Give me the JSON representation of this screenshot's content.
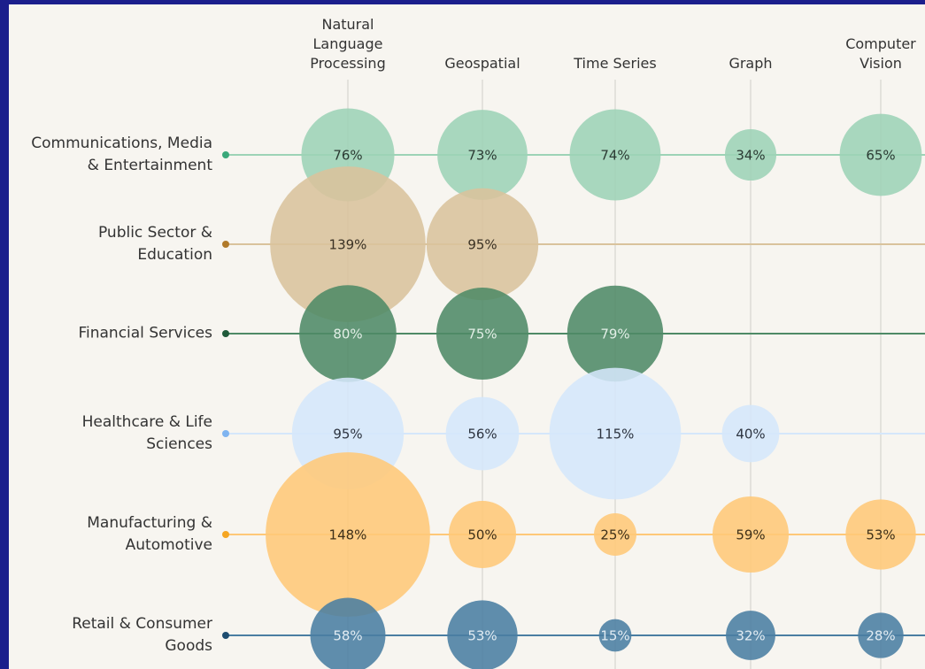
{
  "chart_data": {
    "type": "bubble",
    "columns": [
      "Natural Language Processing",
      "Geospatial",
      "Time Series",
      "Graph",
      "Computer Vision"
    ],
    "series": [
      {
        "name": "Communications, Media & Entertainment",
        "color": "#9dd3b6",
        "accent": "#3aa87a",
        "label_color": "#2b3a33",
        "values": [
          76,
          73,
          74,
          34,
          65
        ],
        "value_labels": [
          "76%",
          "73%",
          "74%",
          "34%",
          "65%"
        ]
      },
      {
        "name": "Public Sector & Education",
        "color": "#d9c39c",
        "accent": "#b07a2a",
        "label_color": "#3a3124",
        "values": [
          139,
          95,
          null,
          null,
          null
        ],
        "value_labels": [
          "139%",
          "95%",
          null,
          null,
          null
        ]
      },
      {
        "name": "Financial Services",
        "color": "#4e8a66",
        "accent": "#1f5a3a",
        "label_color": "#e3efe7",
        "values": [
          80,
          75,
          79,
          null,
          null
        ],
        "value_labels": [
          "80%",
          "75%",
          "79%",
          null,
          null
        ]
      },
      {
        "name": "Healthcare & Life Sciences",
        "color": "#d5e7fb",
        "accent": "#7fb4f0",
        "label_color": "#2d3440",
        "values": [
          95,
          56,
          115,
          40,
          null
        ],
        "value_labels": [
          "95%",
          "56%",
          "115%",
          "40%",
          null
        ]
      },
      {
        "name": "Manufacturing & Automotive",
        "color": "#ffc878",
        "accent": "#f5a623",
        "label_color": "#3d2f18",
        "values": [
          148,
          50,
          25,
          59,
          53
        ],
        "value_labels": [
          "148%",
          "50%",
          "25%",
          "59%",
          "53%"
        ]
      },
      {
        "name": "Retail & Consumer Goods",
        "color": "#4a7ea2",
        "accent": "#1e4d70",
        "label_color": "#e2ecf3",
        "values": [
          58,
          53,
          15,
          32,
          28
        ],
        "value_labels": [
          "58%",
          "53%",
          "15%",
          "32%",
          "28%"
        ]
      }
    ]
  }
}
